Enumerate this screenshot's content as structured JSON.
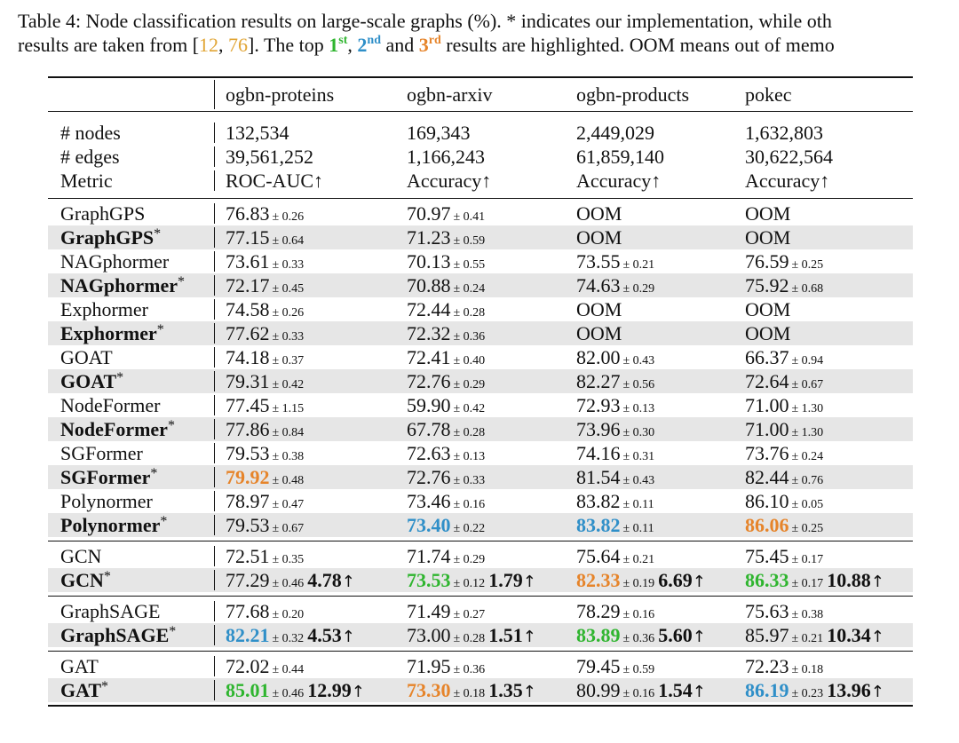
{
  "caption": {
    "line1": "Table 4: Node classification results on large-scale graphs (%).  * indicates our implementation, while oth",
    "line2_a": "results are taken from [",
    "ref1": "12",
    "sep": ", ",
    "ref2": "76",
    "line2_b": "]. The top ",
    "r1": "1",
    "r1_sup": "st",
    "r2": "2",
    "r2_sup": "nd",
    "and": " and ",
    "r3": "3",
    "r3_sup": "rd",
    "line2_c": " results are highlighted. OOM means out of memo"
  },
  "colors": {
    "first": "#2fb52f",
    "second": "#2f8fc8",
    "third": "#e6842a",
    "shade": "#e6e6e6"
  },
  "arrow": "↑",
  "columns": [
    "",
    "ogbn-proteins",
    "ogbn-arxiv",
    "ogbn-products",
    "pokec"
  ],
  "stats": [
    [
      "# nodes",
      "132,534",
      "169,343",
      "2,449,029",
      "1,632,803"
    ],
    [
      "# edges",
      "39,561,252",
      "1,166,243",
      "61,859,140",
      "30,622,564"
    ],
    [
      "Metric",
      "ROC-AUC↑",
      "Accuracy↑",
      "Accuracy↑",
      "Accuracy↑"
    ]
  ],
  "groups": [
    [
      {
        "model": "GraphGPS",
        "star": false,
        "cells": [
          {
            "v": "76.83",
            "s": "± 0.26"
          },
          {
            "v": "70.97",
            "s": "± 0.41"
          },
          {
            "v": "OOM"
          },
          {
            "v": "OOM"
          }
        ]
      },
      {
        "model": "GraphGPS",
        "star": true,
        "cells": [
          {
            "v": "77.15",
            "s": "± 0.64"
          },
          {
            "v": "71.23",
            "s": "± 0.59"
          },
          {
            "v": "OOM"
          },
          {
            "v": "OOM"
          }
        ]
      },
      {
        "model": "NAGphormer",
        "star": false,
        "cells": [
          {
            "v": "73.61",
            "s": "± 0.33"
          },
          {
            "v": "70.13",
            "s": "± 0.55"
          },
          {
            "v": "73.55",
            "s": "± 0.21"
          },
          {
            "v": "76.59",
            "s": "± 0.25"
          }
        ]
      },
      {
        "model": "NAGphormer",
        "star": true,
        "cells": [
          {
            "v": "72.17",
            "s": "± 0.45"
          },
          {
            "v": "70.88",
            "s": "± 0.24"
          },
          {
            "v": "74.63",
            "s": "± 0.29"
          },
          {
            "v": "75.92",
            "s": "± 0.68"
          }
        ]
      },
      {
        "model": "Exphormer",
        "star": false,
        "cells": [
          {
            "v": "74.58",
            "s": "± 0.26"
          },
          {
            "v": "72.44",
            "s": "± 0.28"
          },
          {
            "v": "OOM"
          },
          {
            "v": "OOM"
          }
        ]
      },
      {
        "model": "Exphormer",
        "star": true,
        "cells": [
          {
            "v": "77.62",
            "s": "± 0.33"
          },
          {
            "v": "72.32",
            "s": "± 0.36"
          },
          {
            "v": "OOM"
          },
          {
            "v": "OOM"
          }
        ]
      },
      {
        "model": "GOAT",
        "star": false,
        "cells": [
          {
            "v": "74.18",
            "s": "± 0.37"
          },
          {
            "v": "72.41",
            "s": "± 0.40"
          },
          {
            "v": "82.00",
            "s": "± 0.43"
          },
          {
            "v": "66.37",
            "s": "± 0.94"
          }
        ]
      },
      {
        "model": "GOAT",
        "star": true,
        "cells": [
          {
            "v": "79.31",
            "s": "± 0.42"
          },
          {
            "v": "72.76",
            "s": "± 0.29"
          },
          {
            "v": "82.27",
            "s": "± 0.56"
          },
          {
            "v": "72.64",
            "s": "± 0.67"
          }
        ]
      },
      {
        "model": "NodeFormer",
        "star": false,
        "cells": [
          {
            "v": "77.45",
            "s": "± 1.15"
          },
          {
            "v": "59.90",
            "s": "± 0.42"
          },
          {
            "v": "72.93",
            "s": "± 0.13"
          },
          {
            "v": "71.00",
            "s": "± 1.30"
          }
        ]
      },
      {
        "model": "NodeFormer",
        "star": true,
        "cells": [
          {
            "v": "77.86",
            "s": "± 0.84"
          },
          {
            "v": "67.78",
            "s": "± 0.28"
          },
          {
            "v": "73.96",
            "s": "± 0.30"
          },
          {
            "v": "71.00",
            "s": "± 1.30"
          }
        ]
      },
      {
        "model": "SGFormer",
        "star": false,
        "cells": [
          {
            "v": "79.53",
            "s": "± 0.38"
          },
          {
            "v": "72.63",
            "s": "± 0.13"
          },
          {
            "v": "74.16",
            "s": "± 0.31"
          },
          {
            "v": "73.76",
            "s": "± 0.24"
          }
        ]
      },
      {
        "model": "SGFormer",
        "star": true,
        "cells": [
          {
            "v": "79.92",
            "s": "± 0.48",
            "rank": 3
          },
          {
            "v": "72.76",
            "s": "± 0.33"
          },
          {
            "v": "81.54",
            "s": "± 0.43"
          },
          {
            "v": "82.44",
            "s": "± 0.76"
          }
        ]
      },
      {
        "model": "Polynormer",
        "star": false,
        "cells": [
          {
            "v": "78.97",
            "s": "± 0.47"
          },
          {
            "v": "73.46",
            "s": "± 0.16"
          },
          {
            "v": "83.82",
            "s": "± 0.11"
          },
          {
            "v": "86.10",
            "s": "± 0.05"
          }
        ]
      },
      {
        "model": "Polynormer",
        "star": true,
        "cells": [
          {
            "v": "79.53",
            "s": "± 0.67"
          },
          {
            "v": "73.40",
            "s": "± 0.22",
            "rank": 2
          },
          {
            "v": "83.82",
            "s": "± 0.11",
            "rank": 2
          },
          {
            "v": "86.06",
            "s": "± 0.25",
            "rank": 3
          }
        ]
      }
    ],
    [
      {
        "model": "GCN",
        "star": false,
        "cells": [
          {
            "v": "72.51",
            "s": "± 0.35"
          },
          {
            "v": "71.74",
            "s": "± 0.29"
          },
          {
            "v": "75.64",
            "s": "± 0.21"
          },
          {
            "v": "75.45",
            "s": "± 0.17"
          }
        ]
      },
      {
        "model": "GCN",
        "star": true,
        "cells": [
          {
            "v": "77.29",
            "s": "± 0.46",
            "g": "4.78"
          },
          {
            "v": "73.53",
            "s": "± 0.12",
            "g": "1.79",
            "rank": 1
          },
          {
            "v": "82.33",
            "s": "± 0.19",
            "g": "6.69",
            "rank": 3
          },
          {
            "v": "86.33",
            "s": "± 0.17",
            "g": "10.88",
            "rank": 1
          }
        ]
      }
    ],
    [
      {
        "model": "GraphSAGE",
        "star": false,
        "cells": [
          {
            "v": "77.68",
            "s": "± 0.20"
          },
          {
            "v": "71.49",
            "s": "± 0.27"
          },
          {
            "v": "78.29",
            "s": "± 0.16"
          },
          {
            "v": "75.63",
            "s": "± 0.38"
          }
        ]
      },
      {
        "model": "GraphSAGE",
        "star": true,
        "cells": [
          {
            "v": "82.21",
            "s": "± 0.32",
            "g": "4.53",
            "rank": 2
          },
          {
            "v": "73.00",
            "s": "± 0.28",
            "g": "1.51"
          },
          {
            "v": "83.89",
            "s": "± 0.36",
            "g": "5.60",
            "rank": 1
          },
          {
            "v": "85.97",
            "s": "± 0.21",
            "g": "10.34"
          }
        ]
      }
    ],
    [
      {
        "model": "GAT",
        "star": false,
        "cells": [
          {
            "v": "72.02",
            "s": "± 0.44"
          },
          {
            "v": "71.95",
            "s": "± 0.36"
          },
          {
            "v": "79.45",
            "s": "± 0.59"
          },
          {
            "v": "72.23",
            "s": "± 0.18"
          }
        ]
      },
      {
        "model": "GAT",
        "star": true,
        "cells": [
          {
            "v": "85.01",
            "s": "± 0.46",
            "g": "12.99",
            "rank": 1
          },
          {
            "v": "73.30",
            "s": "± 0.18",
            "g": "1.35",
            "rank": 3
          },
          {
            "v": "80.99",
            "s": "± 0.16",
            "g": "1.54"
          },
          {
            "v": "86.19",
            "s": "± 0.23",
            "g": "13.96",
            "rank": 2
          }
        ]
      }
    ]
  ]
}
